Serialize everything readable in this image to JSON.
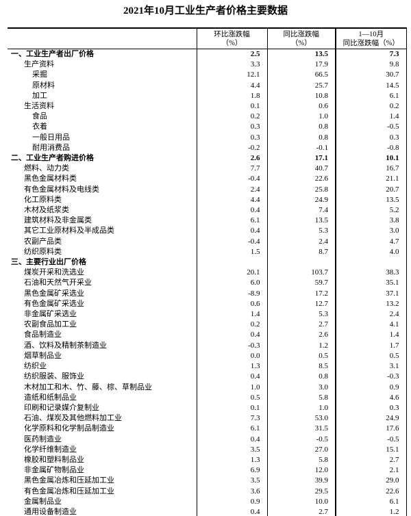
{
  "title": "2021年10月工业生产者价格主要数据",
  "table": {
    "headers": [
      {
        "line1": "环比涨跌幅",
        "line2": "（%）"
      },
      {
        "line1": "同比涨跌幅",
        "line2": "（%）"
      },
      {
        "line1": "1—10月",
        "line2": "同比涨跌幅（%）"
      }
    ],
    "rows": [
      {
        "label": "一、工业生产者出厂价格",
        "indent": 1,
        "bold": true,
        "mom": "2.5",
        "yoy": "13.5",
        "ytd": "7.3"
      },
      {
        "label": "生产资料",
        "indent": 2,
        "bold": false,
        "mom": "3.3",
        "yoy": "17.9",
        "ytd": "9.8"
      },
      {
        "label": "采掘",
        "indent": 3,
        "bold": false,
        "mom": "12.1",
        "yoy": "66.5",
        "ytd": "30.7"
      },
      {
        "label": "原材料",
        "indent": 3,
        "bold": false,
        "mom": "4.4",
        "yoy": "25.7",
        "ytd": "14.5"
      },
      {
        "label": "加工",
        "indent": 3,
        "bold": false,
        "mom": "1.8",
        "yoy": "10.8",
        "ytd": "6.1"
      },
      {
        "label": "生活资料",
        "indent": 2,
        "bold": false,
        "mom": "0.1",
        "yoy": "0.6",
        "ytd": "0.2"
      },
      {
        "label": "食品",
        "indent": 3,
        "bold": false,
        "mom": "0.2",
        "yoy": "1.0",
        "ytd": "1.4"
      },
      {
        "label": "衣着",
        "indent": 3,
        "bold": false,
        "mom": "0.3",
        "yoy": "0.8",
        "ytd": "-0.5"
      },
      {
        "label": "一般日用品",
        "indent": 3,
        "bold": false,
        "mom": "0.3",
        "yoy": "0.8",
        "ytd": "0.3"
      },
      {
        "label": "耐用消费品",
        "indent": 3,
        "bold": false,
        "mom": "-0.2",
        "yoy": "-0.1",
        "ytd": "-0.8"
      },
      {
        "label": "二、工业生产者购进价格",
        "indent": 1,
        "bold": true,
        "mom": "2.6",
        "yoy": "17.1",
        "ytd": "10.1"
      },
      {
        "label": "燃料、动力类",
        "indent": 2,
        "bold": false,
        "mom": "7.7",
        "yoy": "40.7",
        "ytd": "16.7"
      },
      {
        "label": "黑色金属材料类",
        "indent": 2,
        "bold": false,
        "mom": "-0.4",
        "yoy": "22.6",
        "ytd": "21.1"
      },
      {
        "label": "有色金属材料及电线类",
        "indent": 2,
        "bold": false,
        "mom": "2.4",
        "yoy": "25.8",
        "ytd": "20.7"
      },
      {
        "label": "化工原料类",
        "indent": 2,
        "bold": false,
        "mom": "4.4",
        "yoy": "24.9",
        "ytd": "13.5"
      },
      {
        "label": "木材及纸浆类",
        "indent": 2,
        "bold": false,
        "mom": "0.4",
        "yoy": "7.4",
        "ytd": "5.2"
      },
      {
        "label": "建筑材料及非金属类",
        "indent": 2,
        "bold": false,
        "mom": "6.1",
        "yoy": "13.5",
        "ytd": "3.8"
      },
      {
        "label": "其它工业原材料及半成品类",
        "indent": 2,
        "bold": false,
        "mom": "0.4",
        "yoy": "5.3",
        "ytd": "3.0"
      },
      {
        "label": "农副产品类",
        "indent": 2,
        "bold": false,
        "mom": "-0.4",
        "yoy": "2.4",
        "ytd": "4.7"
      },
      {
        "label": "纺织原料类",
        "indent": 2,
        "bold": false,
        "mom": "1.5",
        "yoy": "8.7",
        "ytd": "4.0"
      },
      {
        "label": "三、主要行业出厂价格",
        "indent": 1,
        "bold": true,
        "mom": "",
        "yoy": "",
        "ytd": ""
      },
      {
        "label": "煤炭开采和洗选业",
        "indent": 2,
        "bold": false,
        "mom": "20.1",
        "yoy": "103.7",
        "ytd": "38.3"
      },
      {
        "label": "石油和天然气开采业",
        "indent": 2,
        "bold": false,
        "mom": "6.0",
        "yoy": "59.7",
        "ytd": "35.1"
      },
      {
        "label": "黑色金属矿采选业",
        "indent": 2,
        "bold": false,
        "mom": "-8.9",
        "yoy": "17.2",
        "ytd": "37.1"
      },
      {
        "label": "有色金属矿采选业",
        "indent": 2,
        "bold": false,
        "mom": "0.6",
        "yoy": "12.7",
        "ytd": "13.2"
      },
      {
        "label": "非金属矿采选业",
        "indent": 2,
        "bold": false,
        "mom": "1.4",
        "yoy": "5.3",
        "ytd": "2.4"
      },
      {
        "label": "农副食品加工业",
        "indent": 2,
        "bold": false,
        "mom": "0.2",
        "yoy": "2.7",
        "ytd": "4.1"
      },
      {
        "label": "食品制造业",
        "indent": 2,
        "bold": false,
        "mom": "0.4",
        "yoy": "2.6",
        "ytd": "1.4"
      },
      {
        "label": "酒、饮料及精制茶制造业",
        "indent": 2,
        "bold": false,
        "mom": "-0.3",
        "yoy": "1.2",
        "ytd": "1.7"
      },
      {
        "label": "烟草制品业",
        "indent": 2,
        "bold": false,
        "mom": "0.0",
        "yoy": "0.5",
        "ytd": "0.5"
      },
      {
        "label": "纺织业",
        "indent": 2,
        "bold": false,
        "mom": "1.3",
        "yoy": "8.5",
        "ytd": "3.1"
      },
      {
        "label": "纺织服装、服饰业",
        "indent": 2,
        "bold": false,
        "mom": "0.4",
        "yoy": "0.8",
        "ytd": "-0.3"
      },
      {
        "label": "木材加工和木、竹、藤、棕、草制品业",
        "indent": 2,
        "bold": false,
        "mom": "1.0",
        "yoy": "3.0",
        "ytd": "0.9"
      },
      {
        "label": "造纸和纸制品业",
        "indent": 2,
        "bold": false,
        "mom": "0.5",
        "yoy": "5.8",
        "ytd": "4.6"
      },
      {
        "label": "印刷和记录媒介复制业",
        "indent": 2,
        "bold": false,
        "mom": "0.1",
        "yoy": "1.0",
        "ytd": "0.3"
      },
      {
        "label": "石油、煤炭及其他燃料加工业",
        "indent": 2,
        "bold": false,
        "mom": "7.3",
        "yoy": "53.0",
        "ytd": "24.9"
      },
      {
        "label": "化学原料和化学制品制造业",
        "indent": 2,
        "bold": false,
        "mom": "6.1",
        "yoy": "31.5",
        "ytd": "17.6"
      },
      {
        "label": "医药制造业",
        "indent": 2,
        "bold": false,
        "mom": "0.4",
        "yoy": "-0.5",
        "ytd": "-0.5"
      },
      {
        "label": "化学纤维制造业",
        "indent": 2,
        "bold": false,
        "mom": "3.5",
        "yoy": "27.0",
        "ytd": "15.1"
      },
      {
        "label": "橡胶和塑料制品业",
        "indent": 2,
        "bold": false,
        "mom": "1.3",
        "yoy": "5.8",
        "ytd": "2.7"
      },
      {
        "label": "非金属矿物制品业",
        "indent": 2,
        "bold": false,
        "mom": "6.9",
        "yoy": "12.0",
        "ytd": "2.1"
      },
      {
        "label": "黑色金属冶炼和压延加工业",
        "indent": 2,
        "bold": false,
        "mom": "3.5",
        "yoy": "39.9",
        "ytd": "29.0"
      },
      {
        "label": "有色金属冶炼和压延加工业",
        "indent": 2,
        "bold": false,
        "mom": "3.6",
        "yoy": "29.5",
        "ytd": "22.6"
      },
      {
        "label": "金属制品业",
        "indent": 2,
        "bold": false,
        "mom": "0.9",
        "yoy": "10.0",
        "ytd": "6.1"
      },
      {
        "label": "通用设备制造业",
        "indent": 2,
        "bold": false,
        "mom": "0.4",
        "yoy": "2.7",
        "ytd": "1.2"
      }
    ]
  }
}
